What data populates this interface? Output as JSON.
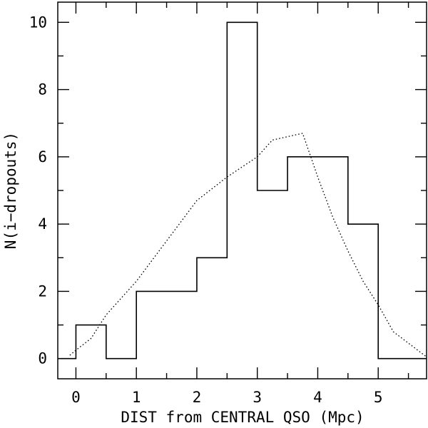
{
  "chart_data": {
    "type": "histogram",
    "xlabel": "DIST from CENTRAL QSO (Mpc)",
    "ylabel": "N(i−dropouts)",
    "xlim": [
      -0.3,
      5.8
    ],
    "ylim": [
      -0.6,
      10.6
    ],
    "x_ticks": [
      0,
      1,
      2,
      3,
      4,
      5
    ],
    "y_ticks": [
      0,
      2,
      4,
      6,
      8,
      10
    ],
    "x_minor_step": 0.5,
    "y_minor_step": 1,
    "histogram": {
      "bin_edges": [
        -0.3,
        0,
        0.5,
        1,
        1.5,
        2,
        2.5,
        3,
        3.5,
        4,
        4.5,
        5,
        5.8
      ],
      "counts": [
        0,
        1,
        0,
        2,
        2,
        3,
        10,
        5,
        6,
        6,
        4,
        0
      ],
      "line_style": "solid"
    },
    "model_curve": {
      "line_style": "dotted",
      "x": [
        -0.1,
        0,
        0.25,
        0.5,
        1.0,
        1.5,
        2.0,
        2.5,
        3.0,
        3.25,
        3.75,
        4.0,
        4.25,
        4.5,
        4.75,
        5.0,
        5.25,
        5.8
      ],
      "y": [
        0.1,
        0.25,
        0.6,
        1.3,
        2.3,
        3.5,
        4.7,
        5.4,
        6.0,
        6.5,
        6.7,
        5.4,
        4.2,
        3.2,
        2.3,
        1.6,
        0.8,
        0.05
      ]
    }
  }
}
